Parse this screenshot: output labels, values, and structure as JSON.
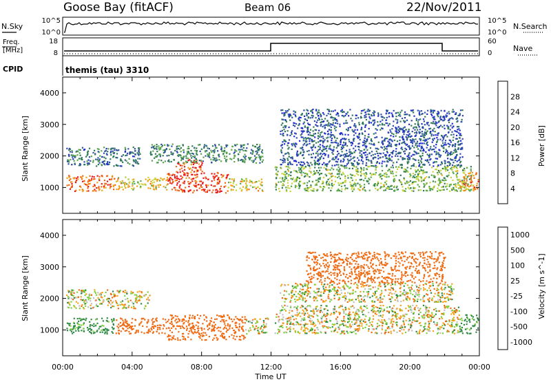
{
  "header": {
    "station": "Goose Bay (fitACF)",
    "beam": "Beam 06",
    "date": "22/Nov/2011"
  },
  "noise_panel": {
    "left_label": "N.Sky",
    "right_label": "N.Search",
    "left_ticks": [
      "10^5",
      "10^0"
    ],
    "right_ticks": [
      "10^5",
      "10^0"
    ]
  },
  "freq_panel": {
    "left_label_top": "Freq.",
    "left_label_bottom": "[MHz]",
    "right_label": "Nave",
    "left_ticks": [
      "18",
      "8"
    ],
    "right_ticks": [
      "60",
      "0"
    ]
  },
  "cpid": {
    "label": "CPID",
    "value": "themis (tau) 3310"
  },
  "colors": {
    "power": [
      "#1e2bd0",
      "#2f4fa8",
      "#2f7a55",
      "#58a64a",
      "#c8d53a",
      "#f2a11c",
      "#f06a12",
      "#e8171c"
    ],
    "velocity": [
      "#e8171c",
      "#f06a12",
      "#f5a51c",
      "#c0c0c0",
      "#c0c0c0",
      "#7fd03a",
      "#2f8a45",
      "#2f4fa8"
    ]
  },
  "chart_data": [
    {
      "type": "heatmap",
      "title": "Power",
      "ylabel": "Slant Range [km]",
      "xlabel": "",
      "xlim": [
        0,
        24
      ],
      "ylim": [
        180,
        4500
      ],
      "ytick_labels": [
        "1000",
        "2000",
        "3000",
        "4000"
      ],
      "colorbar_label": "Power [dB]",
      "colorbar_ticks": [
        "4",
        "8",
        "12",
        "16",
        "20",
        "24",
        "28"
      ],
      "colorbar_range": [
        0,
        30
      ],
      "regions": [
        {
          "time": [
            0.2,
            3.0
          ],
          "range": [
            900,
            1400
          ],
          "value": 24
        },
        {
          "time": [
            0.2,
            4.5
          ],
          "range": [
            1700,
            2300
          ],
          "value": 8
        },
        {
          "time": [
            3.0,
            6.0
          ],
          "range": [
            950,
            1350
          ],
          "value": 18
        },
        {
          "time": [
            6.0,
            9.5
          ],
          "range": [
            850,
            1500
          ],
          "value": 27
        },
        {
          "time": [
            6.5,
            8.0
          ],
          "range": [
            1500,
            1900
          ],
          "value": 26
        },
        {
          "time": [
            9.5,
            11.5
          ],
          "range": [
            900,
            1300
          ],
          "value": 18
        },
        {
          "time": [
            5.0,
            11.5
          ],
          "range": [
            1800,
            2400
          ],
          "value": 10
        },
        {
          "time": [
            12.2,
            23.5
          ],
          "range": [
            900,
            1700
          ],
          "value": 14
        },
        {
          "time": [
            12.5,
            23.0
          ],
          "range": [
            1700,
            3500
          ],
          "value": 6
        },
        {
          "time": [
            22.8,
            23.9
          ],
          "range": [
            900,
            1500
          ],
          "value": 22
        }
      ]
    },
    {
      "type": "heatmap",
      "title": "Velocity",
      "ylabel": "Slant Range [km]",
      "xlabel": "Time UT",
      "xlim": [
        0,
        24
      ],
      "ylim": [
        180,
        4500
      ],
      "xtick_labels": [
        "00:00",
        "04:00",
        "08:00",
        "12:00",
        "16:00",
        "20:00",
        "00:00"
      ],
      "ytick_labels": [
        "1000",
        "2000",
        "3000",
        "4000"
      ],
      "colorbar_label": "Velocity [m s^-1]",
      "colorbar_ticks": [
        "1000",
        "500",
        "100",
        "25",
        "-25",
        "-100",
        "-500",
        "-1000"
      ],
      "regions": [
        {
          "time": [
            0.2,
            3.0
          ],
          "range": [
            900,
            1400
          ],
          "value": 200
        },
        {
          "time": [
            0.2,
            5.0
          ],
          "range": [
            1700,
            2300
          ],
          "value": 0
        },
        {
          "time": [
            3.0,
            6.0
          ],
          "range": [
            900,
            1400
          ],
          "value": -300
        },
        {
          "time": [
            6.0,
            10.5
          ],
          "range": [
            700,
            1500
          ],
          "value": -300
        },
        {
          "time": [
            10.5,
            11.8
          ],
          "range": [
            900,
            1400
          ],
          "value": 0
        },
        {
          "time": [
            12.2,
            22.8
          ],
          "range": [
            900,
            1800
          ],
          "value": 0
        },
        {
          "time": [
            12.5,
            22.5
          ],
          "range": [
            1900,
            2500
          ],
          "value": 0
        },
        {
          "time": [
            14.0,
            22.0
          ],
          "range": [
            2500,
            3500
          ],
          "value": -300
        },
        {
          "time": [
            22.8,
            23.9
          ],
          "range": [
            900,
            1500
          ],
          "value": 200
        }
      ]
    }
  ]
}
